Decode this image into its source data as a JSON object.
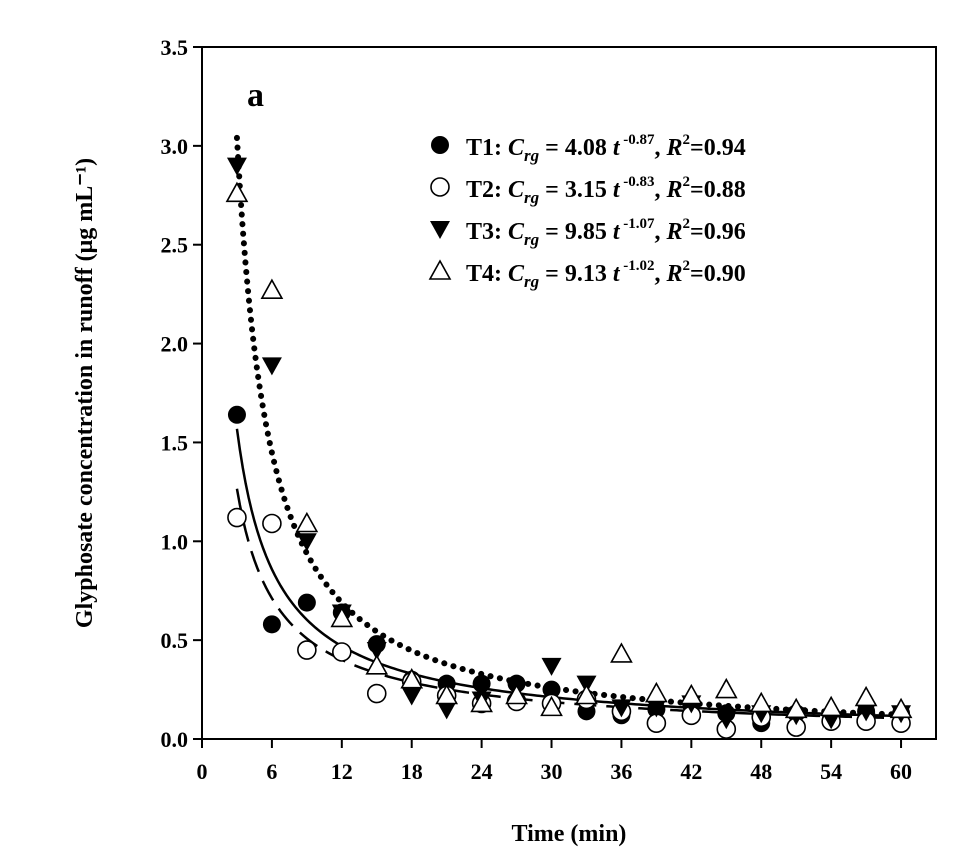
{
  "chart_data": {
    "type": "scatter",
    "panel_label": "a",
    "xlabel": "Time (min)",
    "ylabel": "Glyphosate concentration in runoff (μg mL⁻¹)",
    "xlim": [
      0,
      63
    ],
    "ylim": [
      0,
      3.5
    ],
    "xticks": [
      "0",
      "6",
      "12",
      "18",
      "24",
      "30",
      "36",
      "42",
      "48",
      "54",
      "60"
    ],
    "yticks": [
      "0.0",
      "0.5",
      "1.0",
      "1.5",
      "2.0",
      "2.5",
      "3.0",
      "3.5"
    ],
    "grid": false,
    "legend_position": "top-right",
    "series": [
      {
        "name": "T1",
        "marker": "filled-circle",
        "line": "solid",
        "fit": {
          "a": 4.08,
          "b": -0.87,
          "r2": "0.94"
        },
        "legend": {
          "label": "T1: ",
          "var": "C",
          "sub": "rg",
          "eq": " = 4.08 ",
          "t": "t",
          "exp": " -0.87",
          "sep": ", ",
          "r": "R",
          "rsup": "2",
          "rval": "=0.94"
        },
        "points": [
          [
            3,
            1.64
          ],
          [
            6,
            0.58
          ],
          [
            9,
            0.69
          ],
          [
            12,
            0.64
          ],
          [
            15,
            0.48
          ],
          [
            18,
            0.3
          ],
          [
            21,
            0.28
          ],
          [
            24,
            0.28
          ],
          [
            27,
            0.28
          ],
          [
            30,
            0.25
          ],
          [
            33,
            0.14
          ],
          [
            36,
            0.12
          ],
          [
            39,
            0.15
          ],
          [
            42,
            0.17
          ],
          [
            45,
            0.13
          ],
          [
            48,
            0.08
          ],
          [
            51,
            0.13
          ],
          [
            54,
            0.12
          ],
          [
            57,
            0.14
          ],
          [
            60,
            0.13
          ]
        ]
      },
      {
        "name": "T2",
        "marker": "open-circle",
        "line": "dashed",
        "fit": {
          "a": 3.15,
          "b": -0.83,
          "r2": "0.88"
        },
        "legend": {
          "label": "T2: ",
          "var": "C",
          "sub": "rg",
          "eq": " = 3.15 ",
          "t": "t",
          "exp": " -0.83",
          "sep": ", ",
          "r": "R",
          "rsup": "2",
          "rval": "=0.88"
        },
        "points": [
          [
            3,
            1.12
          ],
          [
            6,
            1.09
          ],
          [
            9,
            0.45
          ],
          [
            12,
            0.44
          ],
          [
            15,
            0.23
          ],
          [
            18,
            0.29
          ],
          [
            21,
            0.22
          ],
          [
            24,
            0.18
          ],
          [
            27,
            0.19
          ],
          [
            30,
            0.18
          ],
          [
            33,
            0.2
          ],
          [
            36,
            0.14
          ],
          [
            39,
            0.08
          ],
          [
            42,
            0.12
          ],
          [
            45,
            0.05
          ],
          [
            48,
            0.11
          ],
          [
            51,
            0.06
          ],
          [
            54,
            0.09
          ],
          [
            57,
            0.09
          ],
          [
            60,
            0.08
          ]
        ]
      },
      {
        "name": "T3",
        "marker": "filled-triangle-down",
        "line": "dotted",
        "fit": {
          "a": 9.85,
          "b": -1.07,
          "r2": "0.96"
        },
        "legend": {
          "label": "T3: ",
          "var": "C",
          "sub": "rg",
          "eq": " = 9.85 ",
          "t": "t",
          "exp": " -1.07",
          "sep": ", ",
          "r": "R",
          "rsup": "2",
          "rval": "=0.96"
        },
        "points": [
          [
            3,
            2.9
          ],
          [
            6,
            1.89
          ],
          [
            9,
            1.0
          ],
          [
            12,
            0.64
          ],
          [
            15,
            0.45
          ],
          [
            18,
            0.22
          ],
          [
            21,
            0.15
          ],
          [
            24,
            0.2
          ],
          [
            27,
            0.25
          ],
          [
            30,
            0.37
          ],
          [
            33,
            0.28
          ],
          [
            36,
            0.16
          ],
          [
            39,
            0.16
          ],
          [
            42,
            0.18
          ],
          [
            45,
            0.1
          ],
          [
            48,
            0.13
          ],
          [
            51,
            0.12
          ],
          [
            54,
            0.1
          ],
          [
            57,
            0.14
          ],
          [
            60,
            0.13
          ]
        ]
      },
      {
        "name": "T4",
        "marker": "open-triangle-up",
        "line": "none",
        "fit": {
          "a": 9.13,
          "b": -1.02,
          "r2": "0.90"
        },
        "legend": {
          "label": "T4: ",
          "var": "C",
          "sub": "rg",
          "eq": " = 9.13 ",
          "t": "t",
          "exp": " -1.02",
          "sep": ", ",
          "r": "R",
          "rsup": "2",
          "rval": "=0.90"
        },
        "points": [
          [
            3,
            2.76
          ],
          [
            6,
            2.27
          ],
          [
            9,
            1.09
          ],
          [
            12,
            0.61
          ],
          [
            15,
            0.37
          ],
          [
            18,
            0.3
          ],
          [
            21,
            0.22
          ],
          [
            24,
            0.18
          ],
          [
            27,
            0.22
          ],
          [
            30,
            0.16
          ],
          [
            33,
            0.22
          ],
          [
            36,
            0.43
          ],
          [
            39,
            0.23
          ],
          [
            42,
            0.22
          ],
          [
            45,
            0.25
          ],
          [
            48,
            0.18
          ],
          [
            51,
            0.15
          ],
          [
            54,
            0.16
          ],
          [
            57,
            0.21
          ],
          [
            60,
            0.15
          ]
        ]
      }
    ]
  }
}
